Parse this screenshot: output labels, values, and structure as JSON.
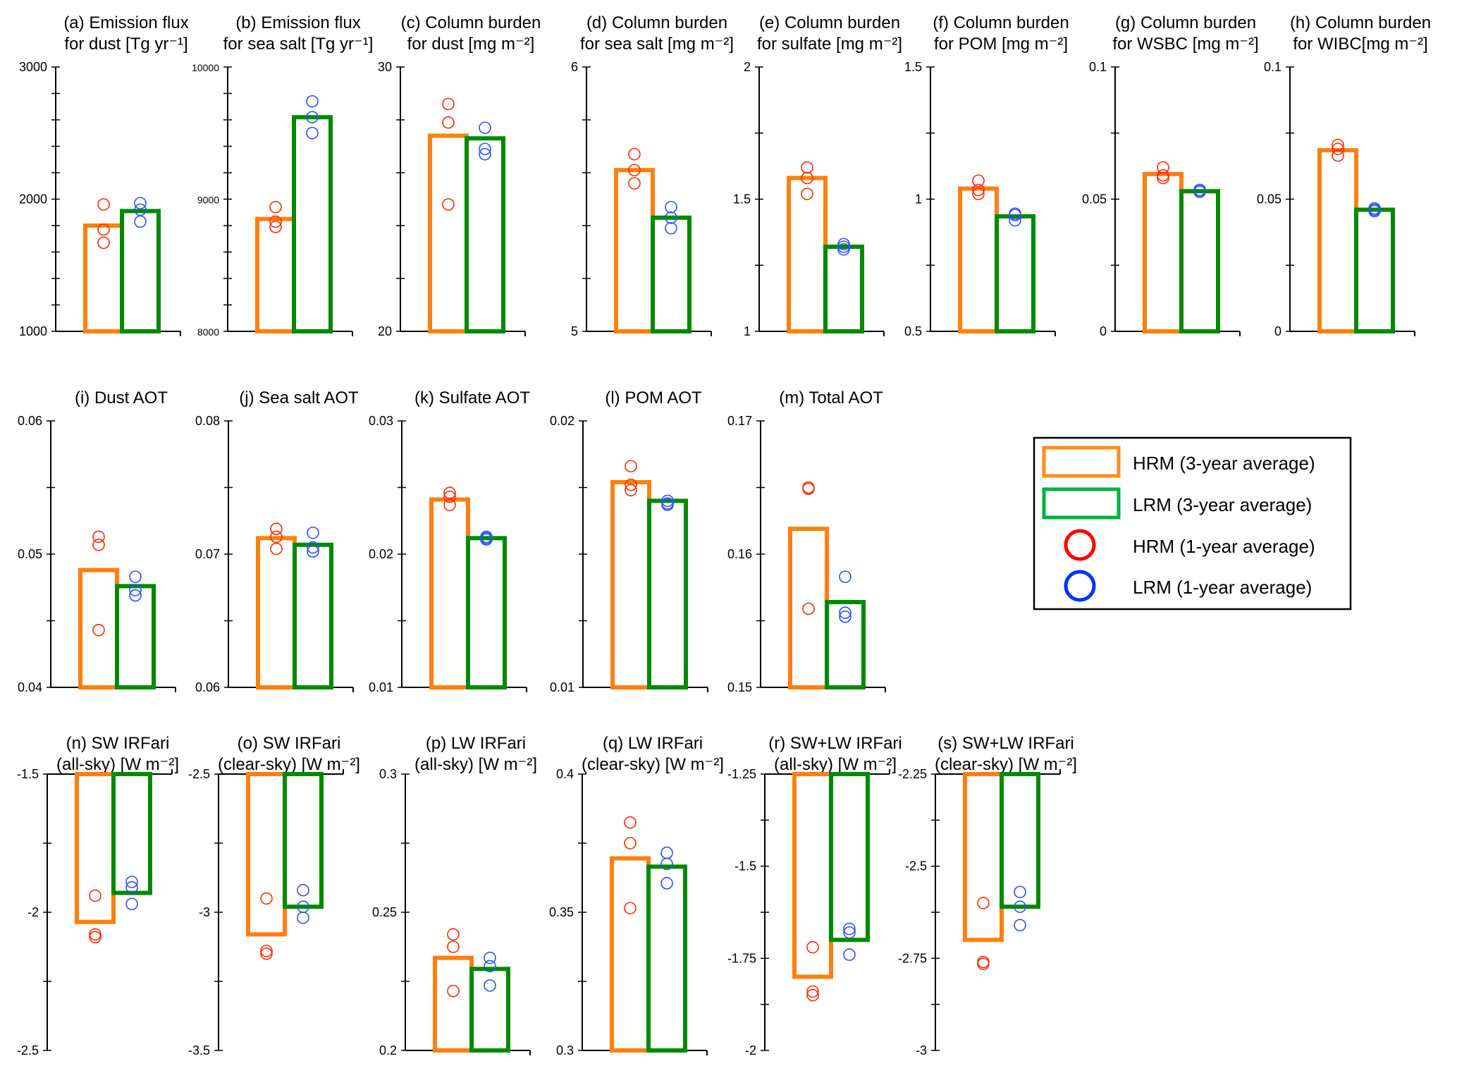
{
  "figure": {
    "colors": {
      "hrm_bar": "#ff7f0e",
      "lrm_bar": "#008a00",
      "hrm_point": "#ff2a00",
      "lrm_point": "#2a50ff",
      "legend_hrm_bar": "#ff8c1a",
      "legend_lrm_bar": "#00b140",
      "legend_hrm_point": "#ff0000",
      "legend_lrm_point": "#0033ff",
      "axis": "#000000"
    },
    "legend": {
      "placement": "right, middle row",
      "entries": [
        {
          "label": "HRM (3-year average)",
          "kind": "bar",
          "series": "hrm"
        },
        {
          "label": "LRM (3-year average)",
          "kind": "bar",
          "series": "lrm"
        },
        {
          "label": "HRM (1-year average)",
          "kind": "circle",
          "series": "hrm"
        },
        {
          "label": "LRM (1-year average)",
          "kind": "circle",
          "series": "lrm"
        }
      ]
    }
  },
  "chart_data": [
    {
      "id": "a",
      "type": "bar",
      "title_lines": [
        "(a) Emission flux",
        "for dust [Tg yr⁻¹]"
      ],
      "ylim": [
        1000,
        3000
      ],
      "major_ticks": [
        1000,
        2000,
        3000
      ],
      "tick_labels": [
        "1000",
        "2000",
        "3000"
      ],
      "minor_step": 200,
      "series": [
        {
          "name": "HRM (3-year average)",
          "values": [
            1800
          ]
        },
        {
          "name": "LRM (3-year average)",
          "values": [
            1910
          ]
        }
      ],
      "points": {
        "HRM (1-year average)": [
          1960,
          1770,
          1670
        ],
        "LRM (1-year average)": [
          1970,
          1920,
          1830
        ]
      }
    },
    {
      "id": "b",
      "type": "bar",
      "title_lines": [
        "(b) Emission flux",
        "for sea salt [Tg yr⁻¹]"
      ],
      "ylim": [
        8000,
        10000
      ],
      "major_ticks": [
        8000,
        9000,
        10000
      ],
      "tick_labels": [
        "8000",
        "9000",
        "10000"
      ],
      "minor_step": 200,
      "small_labels": true,
      "series": [
        {
          "name": "HRM (3-year average)",
          "values": [
            8850
          ]
        },
        {
          "name": "LRM (3-year average)",
          "values": [
            9620
          ]
        }
      ],
      "points": {
        "HRM (1-year average)": [
          8940,
          8830,
          8790
        ],
        "LRM (1-year average)": [
          9740,
          9620,
          9500
        ]
      }
    },
    {
      "id": "c",
      "type": "bar",
      "title_lines": [
        "(c) Column burden",
        "for dust [mg m⁻²]"
      ],
      "ylim": [
        20,
        30
      ],
      "major_ticks": [
        20,
        30
      ],
      "tick_labels": [
        "20",
        "30"
      ],
      "minor_step": 2,
      "series": [
        {
          "name": "HRM (3-year average)",
          "values": [
            27.4
          ]
        },
        {
          "name": "LRM (3-year average)",
          "values": [
            27.3
          ]
        }
      ],
      "points": {
        "HRM (1-year average)": [
          28.6,
          27.9,
          24.8
        ],
        "LRM (1-year average)": [
          27.7,
          26.9,
          26.7
        ]
      }
    },
    {
      "id": "d",
      "type": "bar",
      "title_lines": [
        "(d) Column burden",
        "for sea salt  [mg m⁻²]"
      ],
      "ylim": [
        5,
        6
      ],
      "major_ticks": [
        5,
        6
      ],
      "tick_labels": [
        "5",
        "6"
      ],
      "minor_step": 0.2,
      "series": [
        {
          "name": "HRM (3-year average)",
          "values": [
            5.61
          ]
        },
        {
          "name": "LRM (3-year average)",
          "values": [
            5.43
          ]
        }
      ],
      "points": {
        "HRM (1-year average)": [
          5.67,
          5.61,
          5.56
        ],
        "LRM (1-year average)": [
          5.47,
          5.43,
          5.39
        ]
      }
    },
    {
      "id": "e",
      "type": "bar",
      "title_lines": [
        "(e) Column burden",
        "for sulfate [mg m⁻²]"
      ],
      "ylim": [
        1,
        2
      ],
      "major_ticks": [
        1,
        1.5,
        2
      ],
      "tick_labels": [
        "1",
        "1.5",
        "2"
      ],
      "minor_step": 0.25,
      "series": [
        {
          "name": "HRM (3-year average)",
          "values": [
            1.58
          ]
        },
        {
          "name": "LRM (3-year average)",
          "values": [
            1.32
          ]
        }
      ],
      "points": {
        "HRM (1-year average)": [
          1.62,
          1.58,
          1.52
        ],
        "LRM (1-year average)": [
          1.33,
          1.32,
          1.31
        ]
      }
    },
    {
      "id": "f",
      "type": "bar",
      "title_lines": [
        "(f) Column burden",
        "for POM [mg m⁻²]"
      ],
      "ylim": [
        0.5,
        1.5
      ],
      "major_ticks": [
        0.5,
        1,
        1.5
      ],
      "tick_labels": [
        "0.5",
        "1",
        "1.5"
      ],
      "minor_step": 0.25,
      "series": [
        {
          "name": "HRM (3-year average)",
          "values": [
            1.04
          ]
        },
        {
          "name": "LRM (3-year average)",
          "values": [
            0.935
          ]
        }
      ],
      "points": {
        "HRM (1-year average)": [
          1.07,
          1.035,
          1.02
        ],
        "LRM (1-year average)": [
          0.945,
          0.94,
          0.92
        ]
      }
    },
    {
      "id": "g",
      "type": "bar",
      "title_lines": [
        "(g) Column burden",
        "for WSBC [mg m⁻²]"
      ],
      "ylim": [
        0,
        0.1
      ],
      "major_ticks": [
        0,
        0.05,
        0.1
      ],
      "tick_labels": [
        "0",
        "0.05",
        "0.1"
      ],
      "minor_step": 0.025,
      "series": [
        {
          "name": "HRM (3-year average)",
          "values": [
            0.0595
          ]
        },
        {
          "name": "LRM (3-year average)",
          "values": [
            0.053
          ]
        }
      ],
      "points": {
        "HRM (1-year average)": [
          0.062,
          0.059,
          0.058
        ],
        "LRM (1-year average)": [
          0.0535,
          0.053,
          0.0528
        ]
      }
    },
    {
      "id": "h",
      "type": "bar",
      "title_lines": [
        "(h) Column burden",
        "for WIBC[mg m⁻²]"
      ],
      "ylim": [
        0,
        0.1
      ],
      "major_ticks": [
        0,
        0.05,
        0.1
      ],
      "tick_labels": [
        "0",
        "0.05",
        "0.1"
      ],
      "minor_step": 0.025,
      "series": [
        {
          "name": "HRM (3-year average)",
          "values": [
            0.0685
          ]
        },
        {
          "name": "LRM (3-year average)",
          "values": [
            0.046
          ]
        }
      ],
      "points": {
        "HRM (1-year average)": [
          0.0705,
          0.069,
          0.0665
        ],
        "LRM (1-year average)": [
          0.0465,
          0.046,
          0.0455
        ]
      }
    },
    {
      "id": "i",
      "type": "bar",
      "title_lines": [
        "(i) Dust AOT"
      ],
      "ylim": [
        0.04,
        0.06
      ],
      "major_ticks": [
        0.04,
        0.05,
        0.06
      ],
      "tick_labels": [
        "0.04",
        "0.05",
        "0.06"
      ],
      "minor_step": 0.005,
      "series": [
        {
          "name": "HRM (3-year average)",
          "values": [
            0.0488
          ]
        },
        {
          "name": "LRM (3-year average)",
          "values": [
            0.0476
          ]
        }
      ],
      "points": {
        "HRM (1-year average)": [
          0.0513,
          0.0507,
          0.0443
        ],
        "LRM (1-year average)": [
          0.0483,
          0.0473,
          0.0469
        ]
      }
    },
    {
      "id": "j",
      "type": "bar",
      "title_lines": [
        "(j) Sea salt AOT"
      ],
      "ylim": [
        0.06,
        0.08
      ],
      "major_ticks": [
        0.06,
        0.07,
        0.08
      ],
      "tick_labels": [
        "0.06",
        "0.07",
        "0.08"
      ],
      "minor_step": 0.005,
      "series": [
        {
          "name": "HRM (3-year average)",
          "values": [
            0.0712
          ]
        },
        {
          "name": "LRM (3-year average)",
          "values": [
            0.0707
          ]
        }
      ],
      "points": {
        "HRM (1-year average)": [
          0.0719,
          0.0713,
          0.0704
        ],
        "LRM (1-year average)": [
          0.0716,
          0.0705,
          0.0702
        ]
      }
    },
    {
      "id": "k",
      "type": "bar",
      "title_lines": [
        "(k) Sulfate AOT"
      ],
      "ylim": [
        0.01,
        0.03
      ],
      "major_ticks": [
        0.01,
        0.02,
        0.03
      ],
      "tick_labels": [
        "0.01",
        "0.02",
        "0.03"
      ],
      "minor_step": 0.005,
      "series": [
        {
          "name": "HRM (3-year average)",
          "values": [
            0.0241
          ]
        },
        {
          "name": "LRM (3-year average)",
          "values": [
            0.0212
          ]
        }
      ],
      "points": {
        "HRM (1-year average)": [
          0.0246,
          0.0243,
          0.0237
        ],
        "LRM (1-year average)": [
          0.0213,
          0.0212,
          0.0211
        ]
      }
    },
    {
      "id": "l",
      "type": "bar",
      "title_lines": [
        "(l) POM AOT"
      ],
      "ylim": [
        0.01,
        0.02
      ],
      "major_ticks": [
        0.01,
        0.02
      ],
      "tick_labels": [
        "0.01",
        "0.02"
      ],
      "minor_step": 0.0025,
      "series": [
        {
          "name": "HRM (3-year average)",
          "values": [
            0.0177
          ]
        },
        {
          "name": "LRM (3-year average)",
          "values": [
            0.017
          ]
        }
      ],
      "points": {
        "HRM (1-year average)": [
          0.0183,
          0.0176,
          0.0174
        ],
        "LRM (1-year average)": [
          0.017,
          0.0169,
          0.01685
        ]
      }
    },
    {
      "id": "m",
      "type": "bar",
      "title_lines": [
        "(m) Total AOT"
      ],
      "ylim": [
        0.15,
        0.17
      ],
      "major_ticks": [
        0.15,
        0.16,
        0.17
      ],
      "tick_labels": [
        "0.15",
        "0.16",
        "0.17"
      ],
      "minor_step": 0.005,
      "series": [
        {
          "name": "HRM (3-year average)",
          "values": [
            0.1619
          ]
        },
        {
          "name": "LRM (3-year average)",
          "values": [
            0.1564
          ]
        }
      ],
      "points": {
        "HRM (1-year average)": [
          0.165,
          0.1649,
          0.1559
        ],
        "LRM (1-year average)": [
          0.1583,
          0.1556,
          0.1553
        ]
      }
    },
    {
      "id": "n",
      "type": "bar",
      "title_lines": [
        "(n) SW IRFari",
        "(all-sky) [W m⁻²]"
      ],
      "ylim": [
        -2.5,
        -1.5
      ],
      "major_ticks": [
        -2.5,
        -2,
        -1.5
      ],
      "tick_labels": [
        "-2.5",
        "-2",
        "-1.5"
      ],
      "minor_step": 0.25,
      "inverted": true,
      "series": [
        {
          "name": "HRM (3-year average)",
          "values": [
            -2.035
          ]
        },
        {
          "name": "LRM (3-year average)",
          "values": [
            -1.93
          ]
        }
      ],
      "points": {
        "HRM (1-year average)": [
          -1.94,
          -2.08,
          -2.09
        ],
        "LRM (1-year average)": [
          -1.89,
          -1.91,
          -1.97
        ]
      }
    },
    {
      "id": "o",
      "type": "bar",
      "title_lines": [
        "(o) SW IRFari",
        "(clear-sky) [W m⁻²]"
      ],
      "ylim": [
        -3.5,
        -2.5
      ],
      "major_ticks": [
        -3.5,
        -3,
        -2.5
      ],
      "tick_labels": [
        "-3.5",
        "-3",
        "-2.5"
      ],
      "minor_step": 0.25,
      "inverted": true,
      "series": [
        {
          "name": "HRM (3-year average)",
          "values": [
            -3.08
          ]
        },
        {
          "name": "LRM (3-year average)",
          "values": [
            -2.98
          ]
        }
      ],
      "points": {
        "HRM (1-year average)": [
          -2.95,
          -3.14,
          -3.15
        ],
        "LRM (1-year average)": [
          -2.92,
          -2.98,
          -3.02
        ]
      }
    },
    {
      "id": "p",
      "type": "bar",
      "title_lines": [
        "(p) LW IRFari",
        "(all-sky) [W m⁻²]"
      ],
      "ylim": [
        0.2,
        0.3
      ],
      "major_ticks": [
        0.2,
        0.25,
        0.3
      ],
      "tick_labels": [
        "0.2",
        "0.25",
        "0.3"
      ],
      "minor_step": 0.025,
      "series": [
        {
          "name": "HRM (3-year average)",
          "values": [
            0.2335
          ]
        },
        {
          "name": "LRM (3-year average)",
          "values": [
            0.2295
          ]
        }
      ],
      "points": {
        "HRM (1-year average)": [
          0.242,
          0.2375,
          0.2215
        ],
        "LRM (1-year average)": [
          0.2335,
          0.2305,
          0.2235
        ]
      }
    },
    {
      "id": "q",
      "type": "bar",
      "title_lines": [
        "(q) LW IRFari",
        "(clear-sky) [W m⁻²]"
      ],
      "ylim": [
        0.3,
        0.4
      ],
      "major_ticks": [
        0.3,
        0.35,
        0.4
      ],
      "tick_labels": [
        "0.3",
        "0.35",
        "0.4"
      ],
      "minor_step": 0.025,
      "series": [
        {
          "name": "HRM (3-year average)",
          "values": [
            0.3695
          ]
        },
        {
          "name": "LRM (3-year average)",
          "values": [
            0.3665
          ]
        }
      ],
      "points": {
        "HRM (1-year average)": [
          0.3825,
          0.375,
          0.3515
        ],
        "LRM (1-year average)": [
          0.3715,
          0.3675,
          0.3605
        ]
      }
    },
    {
      "id": "r",
      "type": "bar",
      "title_lines": [
        "(r) SW+LW IRFari",
        "(all-sky) [W m⁻²]"
      ],
      "ylim": [
        -2,
        -1.25
      ],
      "major_ticks": [
        -2,
        -1.75,
        -1.5,
        -1.25
      ],
      "tick_labels": [
        "-2",
        "-1.75",
        "-1.5",
        "-1.25"
      ],
      "minor_step": 0.125,
      "inverted": true,
      "series": [
        {
          "name": "HRM (3-year average)",
          "values": [
            -1.8
          ]
        },
        {
          "name": "LRM (3-year average)",
          "values": [
            -1.7
          ]
        }
      ],
      "points": {
        "HRM (1-year average)": [
          -1.72,
          -1.84,
          -1.85
        ],
        "LRM (1-year average)": [
          -1.67,
          -1.68,
          -1.74
        ]
      }
    },
    {
      "id": "s",
      "type": "bar",
      "title_lines": [
        "(s) SW+LW IRFari",
        "(clear-sky) [W m⁻²]"
      ],
      "ylim": [
        -3,
        -2.25
      ],
      "major_ticks": [
        -3,
        -2.75,
        -2.5,
        -2.25
      ],
      "tick_labels": [
        "-3",
        "-2.75",
        "-2.5",
        "-2.25"
      ],
      "minor_step": 0.125,
      "inverted": true,
      "series": [
        {
          "name": "HRM (3-year average)",
          "values": [
            -2.7
          ]
        },
        {
          "name": "LRM (3-year average)",
          "values": [
            -2.61
          ]
        }
      ],
      "points": {
        "HRM (1-year average)": [
          -2.6,
          -2.76,
          -2.765
        ],
        "LRM (1-year average)": [
          -2.57,
          -2.61,
          -2.66
        ]
      }
    }
  ]
}
